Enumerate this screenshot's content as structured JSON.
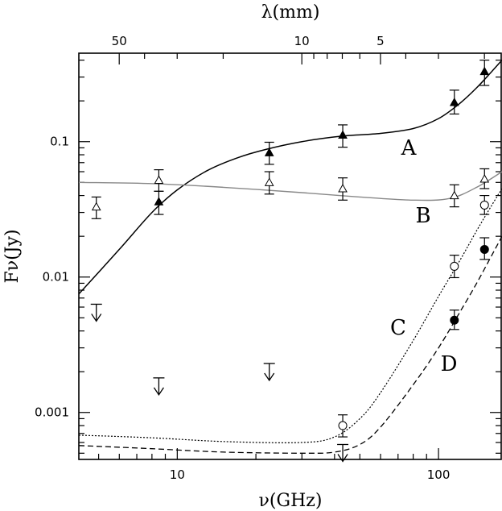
{
  "chart_data": {
    "type": "scatter",
    "xscale": "log",
    "yscale": "log",
    "xlim": [
      4.2,
      175
    ],
    "ylim": [
      0.00045,
      0.45
    ],
    "xlabel": "ν(GHz)",
    "ylabel": "Fν(Jy)",
    "top_axis_label": "λ(mm)",
    "x_ticks": [
      10,
      100
    ],
    "x_tick_labels": [
      "10",
      "100"
    ],
    "y_ticks": [
      0.001,
      0.01,
      0.1
    ],
    "y_tick_labels": [
      "0.001",
      "0.01",
      "0.1"
    ],
    "top_ticks": [
      50,
      10,
      5
    ],
    "top_tick_labels": [
      "50",
      "10",
      "5"
    ],
    "grid": false,
    "series": [
      {
        "name": "A",
        "marker": "filled-triangle",
        "x": [
          8.5,
          22.5,
          43,
          115,
          150
        ],
        "y": [
          0.036,
          0.083,
          0.112,
          0.195,
          0.33
        ],
        "yerr_low": [
          0.029,
          0.068,
          0.091,
          0.16,
          0.26
        ],
        "yerr_high": [
          0.043,
          0.099,
          0.133,
          0.24,
          0.4
        ],
        "model_x": [
          4.2,
          6,
          8,
          10,
          13,
          17,
          22,
          30,
          43,
          60,
          80,
          100,
          120,
          140,
          160,
          175
        ],
        "model_y": [
          0.0075,
          0.016,
          0.03,
          0.044,
          0.061,
          0.076,
          0.088,
          0.1,
          0.11,
          0.115,
          0.125,
          0.148,
          0.19,
          0.25,
          0.33,
          0.4
        ]
      },
      {
        "name": "B",
        "marker": "open-triangle",
        "x": [
          4.9,
          8.5,
          22.5,
          43,
          115,
          150
        ],
        "y": [
          0.033,
          0.052,
          0.05,
          0.045,
          0.04,
          0.053
        ],
        "yerr_low": [
          0.027,
          0.043,
          0.041,
          0.037,
          0.033,
          0.045
        ],
        "yerr_high": [
          0.039,
          0.062,
          0.06,
          0.054,
          0.048,
          0.063
        ],
        "model_x": [
          4.2,
          8,
          15,
          30,
          50,
          80,
          110,
          140,
          175
        ],
        "model_y": [
          0.05,
          0.049,
          0.046,
          0.042,
          0.039,
          0.037,
          0.038,
          0.046,
          0.06
        ]
      },
      {
        "name": "C",
        "marker": "open-circle",
        "x": [
          43,
          115,
          150
        ],
        "y": [
          0.0008,
          0.012,
          0.034
        ],
        "yerr_low": [
          0.00066,
          0.0099,
          0.029
        ],
        "yerr_high": [
          0.00096,
          0.0145,
          0.04
        ],
        "model_x": [
          4.2,
          8,
          15,
          30,
          40,
          50,
          60,
          80,
          100,
          120,
          140,
          160,
          175
        ],
        "model_y": [
          0.00068,
          0.00065,
          0.00061,
          0.0006,
          0.00066,
          0.0009,
          0.0014,
          0.0034,
          0.0072,
          0.013,
          0.022,
          0.034,
          0.045
        ]
      },
      {
        "name": "D",
        "marker": "filled-circle",
        "x": [
          115,
          150
        ],
        "y": [
          0.0048,
          0.016
        ],
        "yerr_low": [
          0.0041,
          0.0135
        ],
        "yerr_high": [
          0.0057,
          0.0195
        ],
        "model_x": [
          4.2,
          8,
          15,
          30,
          40,
          50,
          60,
          80,
          100,
          120,
          140,
          160,
          175
        ],
        "model_y": [
          0.00057,
          0.00054,
          0.00051,
          0.0005,
          0.00051,
          0.00058,
          0.00078,
          0.0016,
          0.003,
          0.0054,
          0.009,
          0.0145,
          0.02
        ]
      }
    ],
    "upper_limits": {
      "x": [
        4.9,
        8.5,
        22.5,
        43
      ],
      "y": [
        0.0063,
        0.0018,
        0.0023,
        0.00058
      ]
    }
  }
}
